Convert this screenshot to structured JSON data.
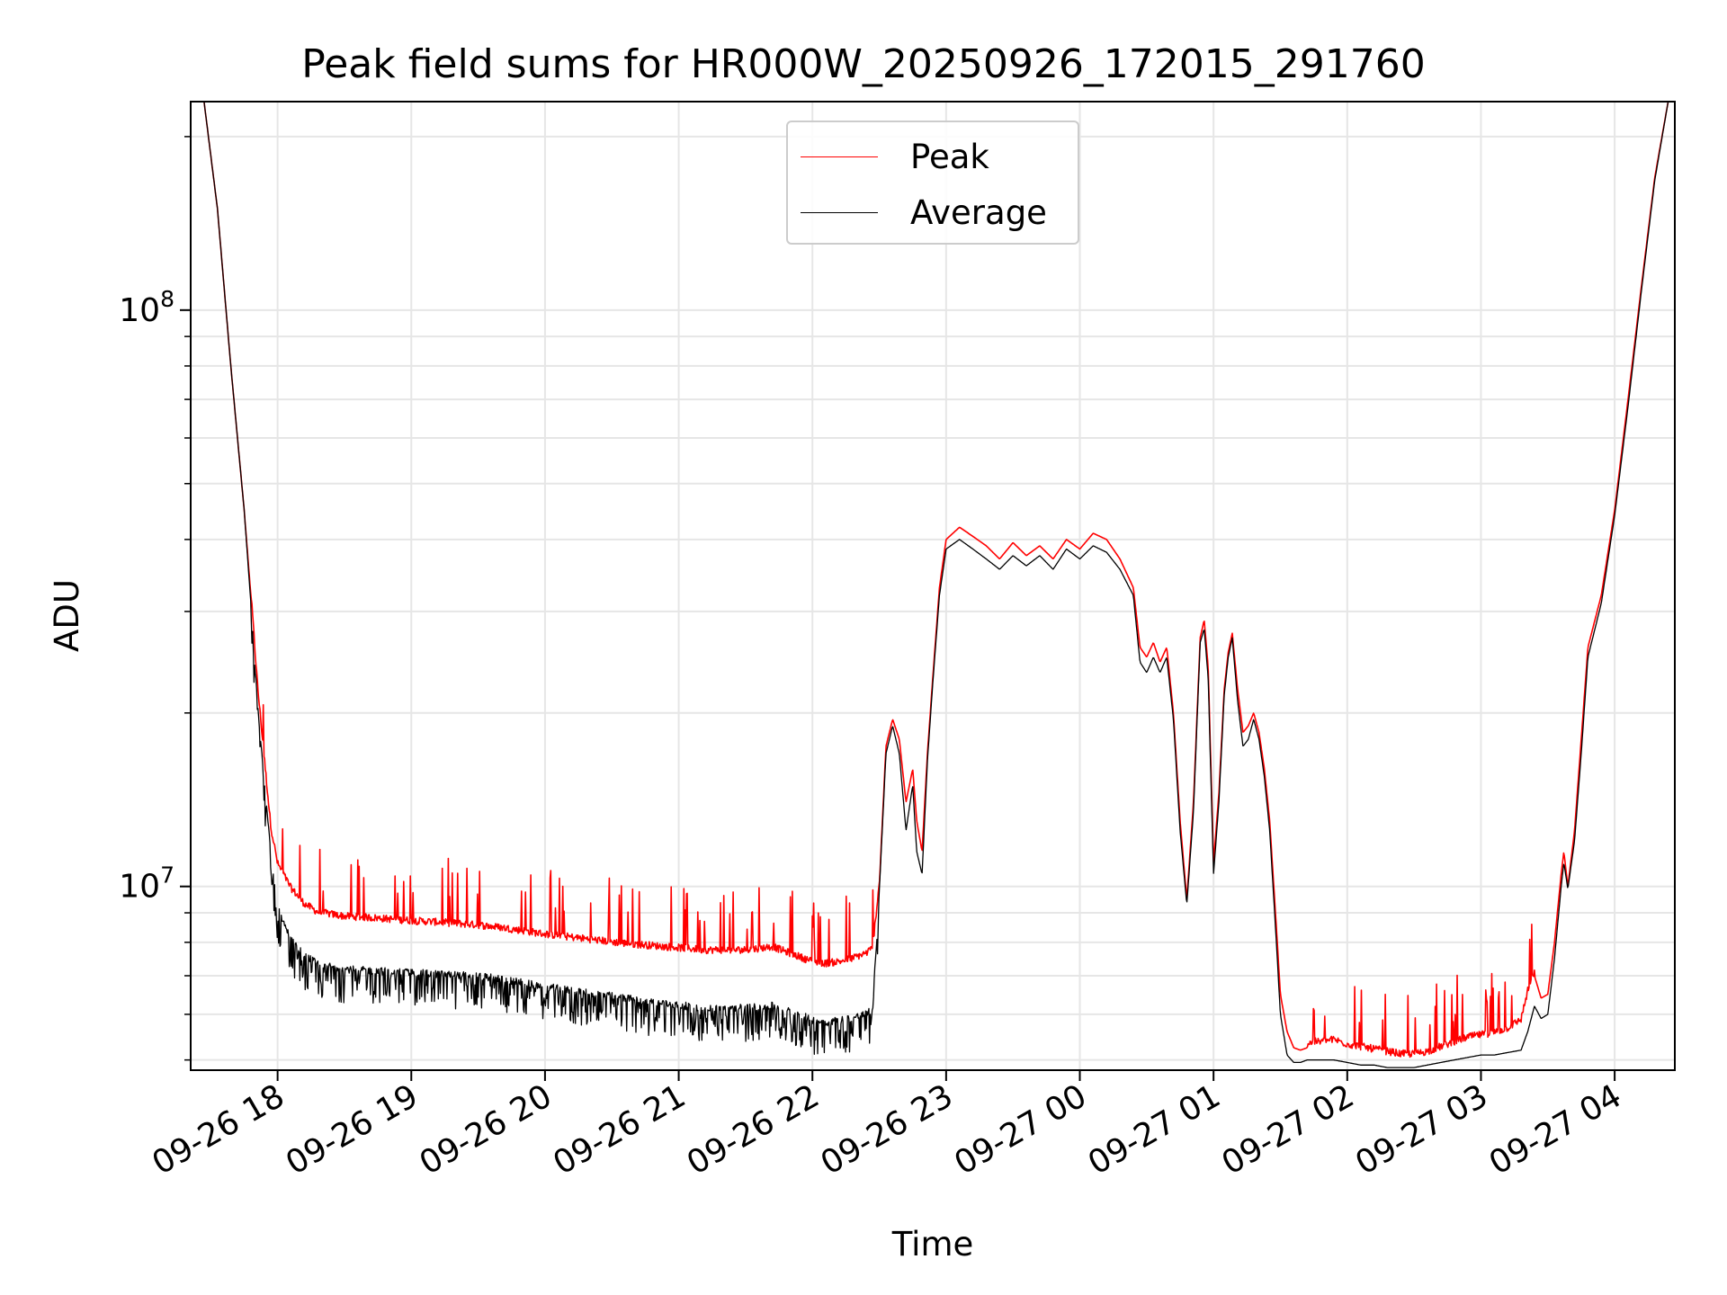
{
  "chart_data": {
    "type": "line",
    "title": "Peak field sums for HR000W_20250926_172015_291760",
    "xlabel": "Time",
    "ylabel": "ADU",
    "yscale": "log",
    "ylim": [
      4800000,
      230000000
    ],
    "xlim": [
      17.35,
      28.45
    ],
    "grid": true,
    "legend_position": "top-center",
    "x_tick_labels": [
      "09-26 18",
      "09-26 19",
      "09-26 20",
      "09-26 21",
      "09-26 22",
      "09-26 23",
      "09-27 00",
      "09-27 01",
      "09-27 02",
      "09-27 03",
      "09-27 04"
    ],
    "x_tick_hours": [
      18,
      19,
      20,
      21,
      22,
      23,
      24,
      25,
      26,
      27,
      28
    ],
    "y_tick_labels": [
      {
        "base": "10",
        "exp": "7",
        "value": 10000000
      },
      {
        "base": "10",
        "exp": "8",
        "value": 100000000
      }
    ],
    "series": [
      {
        "name": "Peak",
        "color": "#ff0000",
        "noisy_region_hours": [
          [
            17.8,
            22.5
          ],
          [
            25.7,
            27.4
          ]
        ],
        "noise_direction": "up",
        "x_hours": [
          17.45,
          17.55,
          17.65,
          17.75,
          17.8,
          17.85,
          17.9,
          17.95,
          18.0,
          18.1,
          18.2,
          18.3,
          18.5,
          18.7,
          19.0,
          19.2,
          19.5,
          19.7,
          20.0,
          20.3,
          20.6,
          20.9,
          21.2,
          21.5,
          21.7,
          21.9,
          22.0,
          22.1,
          22.2,
          22.3,
          22.4,
          22.45,
          22.5,
          22.55,
          22.6,
          22.65,
          22.7,
          22.75,
          22.78,
          22.82,
          22.86,
          22.9,
          22.95,
          23.0,
          23.1,
          23.2,
          23.3,
          23.4,
          23.5,
          23.6,
          23.7,
          23.8,
          23.9,
          24.0,
          24.1,
          24.2,
          24.3,
          24.4,
          24.45,
          24.5,
          24.55,
          24.6,
          24.65,
          24.7,
          24.75,
          24.8,
          24.85,
          24.9,
          24.93,
          24.96,
          25.0,
          25.04,
          25.08,
          25.11,
          25.14,
          25.18,
          25.22,
          25.26,
          25.3,
          25.34,
          25.38,
          25.42,
          25.47,
          25.5,
          25.55,
          25.6,
          25.65,
          25.7,
          25.75,
          25.8,
          25.9,
          26.0,
          26.1,
          26.2,
          26.3,
          26.4,
          26.5,
          26.6,
          26.7,
          26.8,
          26.9,
          27.0,
          27.1,
          27.2,
          27.3,
          27.35,
          27.4,
          27.45,
          27.5,
          27.55,
          27.6,
          27.62,
          27.65,
          27.7,
          27.75,
          27.8,
          27.9,
          28.0,
          28.1,
          28.2,
          28.3,
          28.4
        ],
        "values": [
          230000000,
          150000000,
          80000000,
          45000000,
          32000000,
          22000000,
          16500000,
          12500000,
          10800000,
          9800000,
          9200000,
          8900000,
          8750000,
          8700000,
          8600000,
          8550000,
          8450000,
          8350000,
          8150000,
          8000000,
          7850000,
          7750000,
          7650000,
          7650000,
          7750000,
          7450000,
          7300000,
          7250000,
          7300000,
          7400000,
          7550000,
          7700000,
          10000000,
          17500000,
          19500000,
          18000000,
          14000000,
          16000000,
          13000000,
          11500000,
          17000000,
          23000000,
          33000000,
          40000000,
          42000000,
          40500000,
          39000000,
          37000000,
          39500000,
          37500000,
          39000000,
          37000000,
          40000000,
          38500000,
          41000000,
          40000000,
          37000000,
          33000000,
          26000000,
          25000000,
          26500000,
          24500000,
          26000000,
          20000000,
          13000000,
          9500000,
          14000000,
          27000000,
          29000000,
          24000000,
          11000000,
          14500000,
          22000000,
          25500000,
          27500000,
          22000000,
          18500000,
          19000000,
          20000000,
          18500000,
          16000000,
          13000000,
          8500000,
          6500000,
          5600000,
          5250000,
          5200000,
          5250000,
          5300000,
          5300000,
          5350000,
          5250000,
          5200000,
          5150000,
          5100000,
          5050000,
          5050000,
          5100000,
          5200000,
          5300000,
          5400000,
          5450000,
          5500000,
          5600000,
          5800000,
          6500000,
          7000000,
          6400000,
          6500000,
          8000000,
          10500000,
          11500000,
          10000000,
          12500000,
          18000000,
          26000000,
          32000000,
          45000000,
          70000000,
          110000000,
          170000000,
          230000000
        ]
      },
      {
        "name": "Average",
        "color": "#000000",
        "noisy_region_hours": [
          [
            17.8,
            22.5
          ]
        ],
        "noise_direction": "down",
        "x_hours": [
          17.45,
          17.55,
          17.65,
          17.75,
          17.8,
          17.85,
          17.9,
          17.95,
          18.0,
          18.1,
          18.2,
          18.3,
          18.5,
          18.7,
          19.0,
          19.2,
          19.5,
          19.7,
          20.0,
          20.3,
          20.6,
          20.9,
          21.2,
          21.5,
          21.7,
          21.9,
          22.0,
          22.1,
          22.2,
          22.3,
          22.4,
          22.45,
          22.5,
          22.55,
          22.6,
          22.65,
          22.7,
          22.75,
          22.78,
          22.82,
          22.86,
          22.9,
          22.95,
          23.0,
          23.1,
          23.2,
          23.3,
          23.4,
          23.5,
          23.6,
          23.7,
          23.8,
          23.9,
          24.0,
          24.1,
          24.2,
          24.3,
          24.4,
          24.45,
          24.5,
          24.55,
          24.6,
          24.65,
          24.7,
          24.75,
          24.8,
          24.85,
          24.9,
          24.93,
          24.96,
          25.0,
          25.04,
          25.08,
          25.11,
          25.14,
          25.18,
          25.22,
          25.26,
          25.3,
          25.34,
          25.38,
          25.42,
          25.47,
          25.5,
          25.55,
          25.6,
          25.65,
          25.7,
          25.75,
          25.8,
          25.9,
          26.0,
          26.1,
          26.2,
          26.3,
          26.4,
          26.5,
          26.6,
          26.7,
          26.8,
          26.9,
          27.0,
          27.1,
          27.2,
          27.3,
          27.35,
          27.4,
          27.45,
          27.5,
          27.55,
          27.6,
          27.62,
          27.65,
          27.7,
          27.75,
          27.8,
          27.9,
          28.0,
          28.1,
          28.2,
          28.3,
          28.4
        ],
        "values": [
          230000000,
          150000000,
          80000000,
          45000000,
          31000000,
          21000000,
          15500000,
          11500000,
          9300000,
          8200000,
          7700000,
          7450000,
          7300000,
          7250000,
          7200000,
          7150000,
          7100000,
          7000000,
          6800000,
          6650000,
          6500000,
          6350000,
          6250000,
          6250000,
          6300000,
          6100000,
          5950000,
          5900000,
          5950000,
          6000000,
          6100000,
          6200000,
          9800000,
          17000000,
          19000000,
          17000000,
          12500000,
          15000000,
          11500000,
          10500000,
          16500000,
          22500000,
          32000000,
          38500000,
          40000000,
          38500000,
          37000000,
          35500000,
          37500000,
          36000000,
          37500000,
          35500000,
          38500000,
          37000000,
          39000000,
          38000000,
          35500000,
          32000000,
          24500000,
          23500000,
          25000000,
          23500000,
          25000000,
          19500000,
          12500000,
          9300000,
          13500000,
          26500000,
          28000000,
          23000000,
          10500000,
          14000000,
          21500000,
          25000000,
          27000000,
          21000000,
          17500000,
          18000000,
          19500000,
          18000000,
          15500000,
          12500000,
          8000000,
          6000000,
          5100000,
          4950000,
          4950000,
          5000000,
          5000000,
          5000000,
          5000000,
          4950000,
          4900000,
          4900000,
          4850000,
          4850000,
          4850000,
          4900000,
          4950000,
          5000000,
          5050000,
          5100000,
          5100000,
          5150000,
          5200000,
          5600000,
          6200000,
          5900000,
          6000000,
          7500000,
          10000000,
          11000000,
          9900000,
          12000000,
          17000000,
          25000000,
          31000000,
          44000000,
          68000000,
          108000000,
          168000000,
          230000000
        ]
      }
    ]
  }
}
